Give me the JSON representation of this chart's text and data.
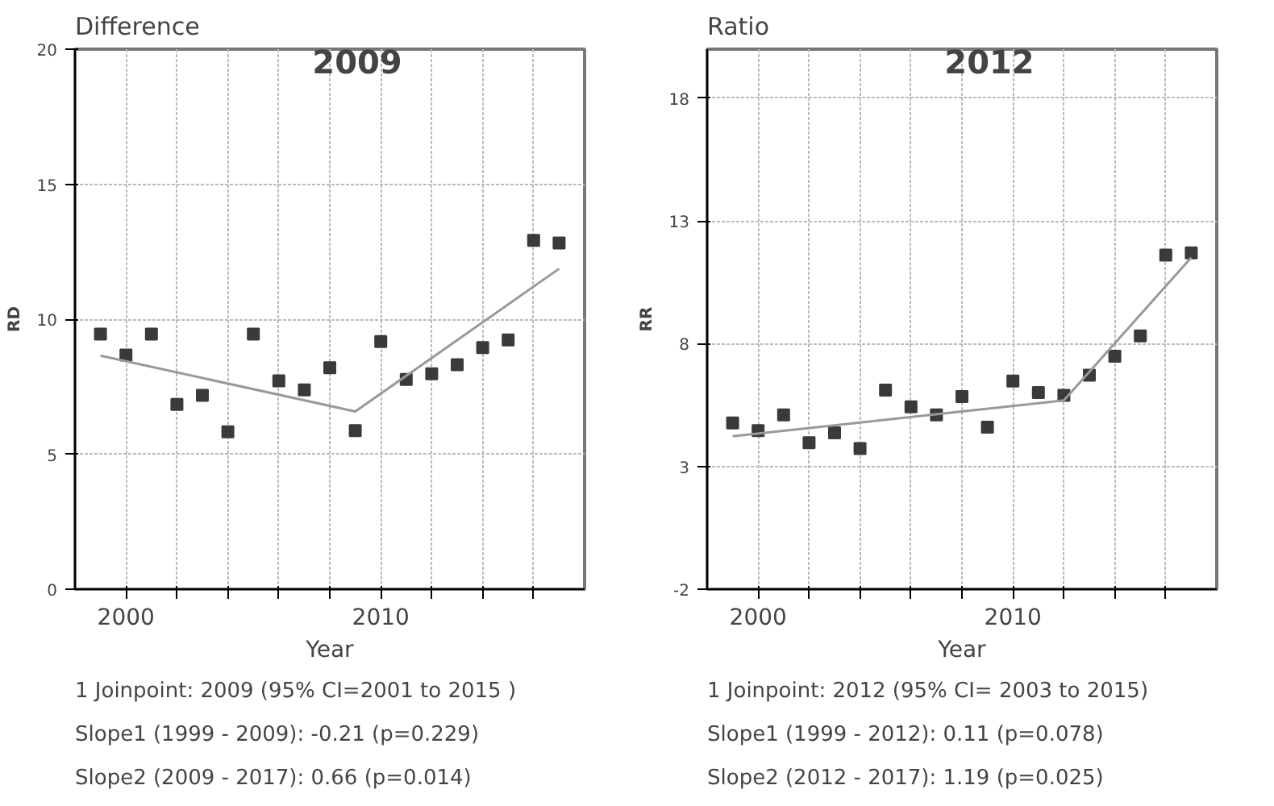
{
  "chart_data": [
    {
      "type": "scatter",
      "title": "Difference",
      "xlabel": "Year",
      "ylabel": "RD",
      "x": [
        1999,
        2000,
        2001,
        2002,
        2003,
        2004,
        2005,
        2006,
        2007,
        2008,
        2009,
        2010,
        2011,
        2012,
        2013,
        2014,
        2015,
        2016,
        2017
      ],
      "xlim": [
        1998,
        2018
      ],
      "xticks": [
        2000,
        {
          "value": 2002,
          "label": null
        },
        {
          "value": 2004,
          "label": null
        },
        {
          "value": 2006,
          "label": null
        },
        {
          "value": 2008,
          "label": null
        },
        2010,
        {
          "value": 2012,
          "label": null
        },
        {
          "value": 2014,
          "label": null
        },
        {
          "value": 2016,
          "label": null
        }
      ],
      "ylim": [
        0,
        20
      ],
      "yticks": [
        0,
        5,
        10,
        15,
        20
      ],
      "grid": true,
      "series": [
        {
          "marker": "square",
          "color": "#3a3a3a",
          "values": [
            9.45,
            8.67,
            9.45,
            6.84,
            7.18,
            5.83,
            9.45,
            7.72,
            7.38,
            8.2,
            5.87,
            9.17,
            7.77,
            7.98,
            8.31,
            8.95,
            9.23,
            12.92,
            12.82
          ]
        },
        {
          "type": "line",
          "color": "#999999",
          "x": [
            1999,
            2009,
            2017
          ],
          "values": [
            8.65,
            6.58,
            11.87
          ]
        }
      ],
      "annotations": [
        "2009",
        "1 Joinpoint: 2009 (95% CI=2001 to 2015 )",
        "Slope1 (1999 - 2009): -0.21  (p=0.229)",
        "Slope2 (2009 - 2017): 0.66  (p=0.014)"
      ]
    },
    {
      "type": "scatter",
      "title": "Ratio",
      "xlabel": "Year",
      "ylabel": "RR",
      "x": [
        1999,
        2000,
        2001,
        2002,
        2003,
        2004,
        2005,
        2006,
        2007,
        2008,
        2009,
        2010,
        2011,
        2012,
        2013,
        2014,
        2015,
        2016,
        2017
      ],
      "xlim": [
        1998,
        2018
      ],
      "xticks": [
        2000,
        {
          "value": 2002,
          "label": null
        },
        {
          "value": 2004,
          "label": null
        },
        {
          "value": 2006,
          "label": null
        },
        {
          "value": 2008,
          "label": null
        },
        2010,
        {
          "value": 2012,
          "label": null
        },
        {
          "value": 2014,
          "label": null
        },
        {
          "value": 2016,
          "label": null
        }
      ],
      "ylim": [
        -2,
        20
      ],
      "yticks": [
        -2,
        3,
        8,
        13,
        18
      ],
      "grid": true,
      "series": [
        {
          "marker": "square",
          "color": "#3a3a3a",
          "values": [
            4.77,
            4.46,
            5.1,
            3.97,
            4.37,
            3.73,
            6.11,
            5.43,
            5.1,
            5.85,
            4.6,
            6.48,
            6.01,
            5.9,
            6.72,
            7.49,
            8.32,
            11.61,
            11.7
          ]
        },
        {
          "type": "line",
          "color": "#999999",
          "x": [
            1999,
            2012,
            2017
          ],
          "values": [
            4.23,
            5.69,
            11.51
          ]
        }
      ],
      "annotations": [
        "2012",
        "1 Joinpoint: 2012 (95% CI= 2003 to 2015)",
        "Slope1 (1999 - 2012): 0.11  (p=0.078)",
        "Slope2 (2012 - 2017): 1.19  (p=0.025)"
      ]
    }
  ]
}
